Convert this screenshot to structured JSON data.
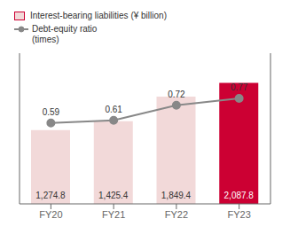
{
  "chart_data": {
    "type": "bar",
    "categories": [
      "FY20",
      "FY21",
      "FY22",
      "FY23"
    ],
    "series": [
      {
        "name": "Interest-bearing liabilities (¥ billion)",
        "type": "bar",
        "colors": [
          "#f2d9d9",
          "#f2d9d9",
          "#f2d9d9",
          "#cc0033"
        ],
        "values": [
          1274.8,
          1425.4,
          1849.4,
          2087.8
        ],
        "value_labels": [
          "1,274.8",
          "1,425.4",
          "1,849.4",
          "2,087.8"
        ]
      },
      {
        "name": "Debt-equity ratio\n(times)",
        "type": "line",
        "color": "#888888",
        "axis": "y2",
        "marker": "o",
        "values": [
          0.59,
          0.61,
          0.72,
          0.77
        ]
      }
    ],
    "ylim": [
      0,
      2600
    ],
    "yticks": [],
    "y2lim": [
      0,
      1.1
    ],
    "y2ticks": [],
    "tick_labels": "x",
    "data_labels": true,
    "legend": "upper left"
  }
}
